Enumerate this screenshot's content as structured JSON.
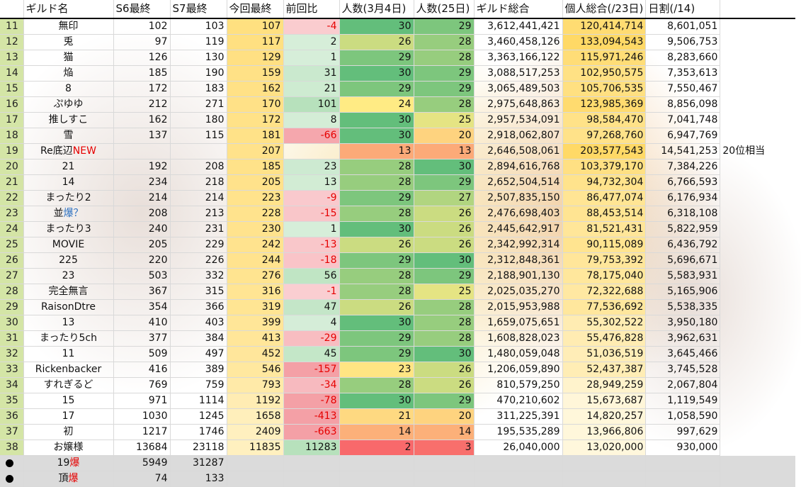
{
  "headers": [
    "ギルド名",
    "S6最終",
    "S7最終",
    "今回最終",
    "前回比",
    "人数(3月4日)",
    "人数(25日)",
    "ギルド総合",
    "個人総合(/23日)",
    "日割(/14)"
  ],
  "rows": [
    {
      "rank": "11",
      "name": "無印",
      "s6": "102",
      "s7": "103",
      "cur": "107",
      "diff": "-4",
      "m1": "30",
      "m2": "29",
      "total": "3,612,441,421",
      "personal": "120,414,714",
      "daily": "8,601,051"
    },
    {
      "rank": "12",
      "name": "兎",
      "s6": "97",
      "s7": "119",
      "cur": "117",
      "diff": "2",
      "m1": "26",
      "m2": "28",
      "total": "3,460,458,126",
      "personal": "133,094,543",
      "daily": "9,506,753"
    },
    {
      "rank": "13",
      "name": "猫",
      "s6": "126",
      "s7": "130",
      "cur": "129",
      "diff": "1",
      "m1": "29",
      "m2": "28",
      "total": "3,363,166,122",
      "personal": "115,971,246",
      "daily": "8,283,660"
    },
    {
      "rank": "14",
      "name": "焔",
      "s6": "185",
      "s7": "190",
      "cur": "159",
      "diff": "31",
      "m1": "30",
      "m2": "29",
      "total": "3,088,517,253",
      "personal": "102,950,575",
      "daily": "7,353,613"
    },
    {
      "rank": "15",
      "name": "8",
      "s6": "172",
      "s7": "183",
      "cur": "162",
      "diff": "21",
      "m1": "29",
      "m2": "29",
      "total": "3,065,489,503",
      "personal": "105,706,535",
      "daily": "7,550,467"
    },
    {
      "rank": "16",
      "name": "ぷゆゆ",
      "s6": "212",
      "s7": "271",
      "cur": "170",
      "diff": "101",
      "m1": "24",
      "m2": "28",
      "total": "2,975,648,863",
      "personal": "123,985,369",
      "daily": "8,856,098"
    },
    {
      "rank": "17",
      "name": "推しすこ",
      "s6": "162",
      "s7": "180",
      "cur": "172",
      "diff": "8",
      "m1": "30",
      "m2": "25",
      "total": "2,957,534,091",
      "personal": "98,584,470",
      "daily": "7,041,748"
    },
    {
      "rank": "18",
      "name": "雪",
      "s6": "137",
      "s7": "115",
      "cur": "181",
      "diff": "-66",
      "m1": "30",
      "m2": "20",
      "total": "2,918,062,807",
      "personal": "97,268,760",
      "daily": "6,947,769"
    },
    {
      "rank": "19",
      "name": "Re底辺",
      "name_tag": "NEW",
      "s6": "",
      "s7": "",
      "cur": "207",
      "diff": "",
      "m1": "13",
      "m2": "13",
      "total": "2,646,508,061",
      "personal": "203,577,543",
      "daily": "14,541,253",
      "note": "20位相当"
    },
    {
      "rank": "20",
      "name": "21",
      "s6": "192",
      "s7": "208",
      "cur": "185",
      "diff": "23",
      "m1": "28",
      "m2": "30",
      "total": "2,894,616,768",
      "personal": "103,379,170",
      "daily": "7,384,226"
    },
    {
      "rank": "21",
      "name": "14",
      "s6": "234",
      "s7": "218",
      "cur": "205",
      "diff": "13",
      "m1": "28",
      "m2": "29",
      "total": "2,652,504,514",
      "personal": "94,732,304",
      "daily": "6,766,593"
    },
    {
      "rank": "22",
      "name": "まったり2",
      "s6": "214",
      "s7": "214",
      "cur": "223",
      "diff": "-9",
      "m1": "29",
      "m2": "27",
      "total": "2,507,835,150",
      "personal": "86,477,074",
      "daily": "6,176,934"
    },
    {
      "rank": "23",
      "name": "並",
      "name_tag2": "爆？",
      "s6": "208",
      "s7": "213",
      "cur": "228",
      "diff": "-15",
      "m1": "28",
      "m2": "26",
      "total": "2,476,698,403",
      "personal": "88,453,514",
      "daily": "6,318,108"
    },
    {
      "rank": "24",
      "name": "まったり3",
      "s6": "240",
      "s7": "231",
      "cur": "230",
      "diff": "1",
      "m1": "30",
      "m2": "26",
      "total": "2,445,642,917",
      "personal": "81,521,431",
      "daily": "5,822,959"
    },
    {
      "rank": "25",
      "name": "MOVIE",
      "s6": "205",
      "s7": "229",
      "cur": "242",
      "diff": "-13",
      "m1": "26",
      "m2": "26",
      "total": "2,342,992,314",
      "personal": "90,115,089",
      "daily": "6,436,792"
    },
    {
      "rank": "26",
      "name": "225",
      "s6": "220",
      "s7": "226",
      "cur": "244",
      "diff": "-18",
      "m1": "29",
      "m2": "30",
      "total": "2,312,848,361",
      "personal": "79,753,392",
      "daily": "5,696,671"
    },
    {
      "rank": "27",
      "name": "23",
      "s6": "503",
      "s7": "332",
      "cur": "276",
      "diff": "56",
      "m1": "28",
      "m2": "29",
      "total": "2,188,901,130",
      "personal": "78,175,040",
      "daily": "5,583,931"
    },
    {
      "rank": "28",
      "name": "完全無言",
      "s6": "367",
      "s7": "315",
      "cur": "316",
      "diff": "-1",
      "m1": "28",
      "m2": "25",
      "total": "2,025,035,270",
      "personal": "72,322,688",
      "daily": "5,165,906"
    },
    {
      "rank": "29",
      "name": "RaisonDtre",
      "s6": "354",
      "s7": "366",
      "cur": "319",
      "diff": "47",
      "m1": "26",
      "m2": "28",
      "total": "2,015,953,988",
      "personal": "77,536,692",
      "daily": "5,538,335"
    },
    {
      "rank": "30",
      "name": "13",
      "s6": "410",
      "s7": "403",
      "cur": "399",
      "diff": "4",
      "m1": "30",
      "m2": "28",
      "total": "1,659,075,651",
      "personal": "55,302,522",
      "daily": "3,950,180"
    },
    {
      "rank": "31",
      "name": "まったり5ch",
      "s6": "377",
      "s7": "384",
      "cur": "413",
      "diff": "-29",
      "m1": "29",
      "m2": "28",
      "total": "1,608,828,023",
      "personal": "55,476,828",
      "daily": "3,962,631"
    },
    {
      "rank": "32",
      "name": "11",
      "s6": "509",
      "s7": "497",
      "cur": "452",
      "diff": "45",
      "m1": "29",
      "m2": "30",
      "total": "1,480,059,048",
      "personal": "51,036,519",
      "daily": "3,645,466"
    },
    {
      "rank": "33",
      "name": "Rickenbacker",
      "s6": "416",
      "s7": "389",
      "cur": "546",
      "diff": "-157",
      "m1": "23",
      "m2": "26",
      "total": "1,206,059,890",
      "personal": "52,437,387",
      "daily": "3,745,528"
    },
    {
      "rank": "34",
      "name": "すれぎるど",
      "s6": "769",
      "s7": "759",
      "cur": "793",
      "diff": "-34",
      "m1": "28",
      "m2": "26",
      "total": "810,579,250",
      "personal": "28,949,259",
      "daily": "2,067,804"
    },
    {
      "rank": "35",
      "name": "15",
      "s6": "971",
      "s7": "1114",
      "cur": "1192",
      "diff": "-78",
      "m1": "30",
      "m2": "29",
      "total": "470,210,602",
      "personal": "15,673,687",
      "daily": "1,119,549"
    },
    {
      "rank": "36",
      "name": "17",
      "s6": "1030",
      "s7": "1245",
      "cur": "1658",
      "diff": "-413",
      "m1": "21",
      "m2": "20",
      "total": "311,225,391",
      "personal": "14,820,257",
      "daily": "1,058,590"
    },
    {
      "rank": "37",
      "name": "初",
      "s6": "1217",
      "s7": "1746",
      "cur": "2409",
      "diff": "-663",
      "m1": "14",
      "m2": "14",
      "total": "195,535,289",
      "personal": "13,966,806",
      "daily": "997,629"
    },
    {
      "rank": "38",
      "name": "お嬢様",
      "s6": "13684",
      "s7": "23118",
      "cur": "11835",
      "diff": "11283",
      "m1": "2",
      "m2": "3",
      "total": "26,040,000",
      "personal": "13,020,000",
      "daily": "930,000"
    }
  ],
  "bottom_rows": [
    {
      "name": "19",
      "name_tag": "爆",
      "s6": "5949",
      "s7": "31287"
    },
    {
      "name": "頂",
      "name_tag": "爆",
      "s6": "74",
      "s7": "133"
    }
  ],
  "colors": {
    "rank_col": "#cde196",
    "diff_pos": "#b7e1bc",
    "diff_neg": "#f4a0a6",
    "member_high": "#63be7b",
    "member_low": "#f8696b",
    "gold": "#ffd966",
    "accent_red": "#e60000",
    "accent_blue": "#2a6fc0"
  }
}
